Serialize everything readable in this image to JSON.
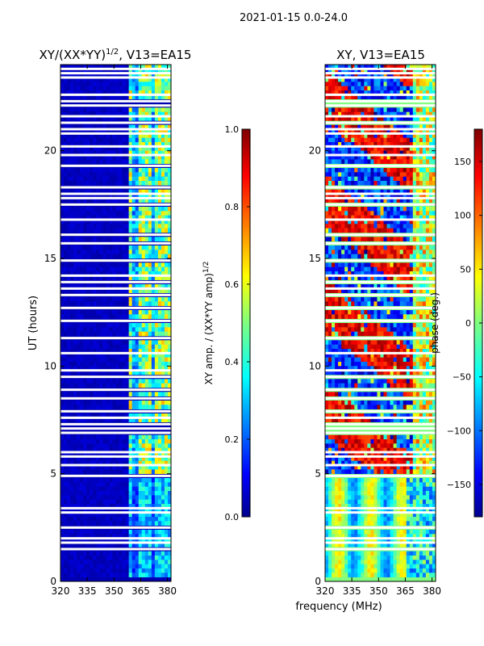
{
  "figure_title": "2021-01-15 0.0-24.0",
  "chart_data": [
    {
      "type": "heatmap",
      "title": "XY/(XX*YY)",
      "title_exp": "1/2",
      "title_suffix": ", V13=EA15",
      "xlabel": "",
      "ylabel": "UT (hours)",
      "xlim": [
        320,
        382
      ],
      "ylim": [
        0,
        24
      ],
      "xticks": [
        "320",
        "335",
        "350",
        "365",
        "380"
      ],
      "yticks": [
        "0",
        "5",
        "10",
        "15",
        "20"
      ],
      "colorbar": {
        "label": "XY amp. / (XX*YY amp)",
        "label_exp": "1/2",
        "range": [
          0.0,
          1.0
        ],
        "ticks": [
          "0.0",
          "0.2",
          "0.4",
          "0.6",
          "0.8",
          "1.0"
        ]
      }
    },
    {
      "type": "heatmap",
      "title": "XY, V13=EA15",
      "xlabel": "frequency (MHz)",
      "ylabel": "",
      "xlim": [
        320,
        382
      ],
      "ylim": [
        0,
        24
      ],
      "xticks": [
        "320",
        "335",
        "350",
        "365",
        "380"
      ],
      "yticks": [
        "0",
        "5",
        "10",
        "15",
        "20"
      ],
      "colorbar": {
        "label": "phase (deg.)",
        "range": [
          -180,
          180
        ],
        "ticks": [
          "−150",
          "−100",
          "−50",
          "0",
          "50",
          "100",
          "150"
        ]
      }
    }
  ],
  "gap_hours": [
    1.5,
    1.8,
    2.0,
    2.5,
    3.2,
    3.4,
    4.9,
    5.4,
    5.8,
    6.0,
    6.9,
    7.1,
    7.3,
    7.6,
    7.9,
    8.5,
    8.9,
    9.5,
    9.8,
    10.6,
    11.3,
    12.1,
    12.7,
    13.3,
    13.6,
    13.9,
    14.2,
    14.9,
    15.7,
    16.1,
    16.8,
    17.5,
    17.8,
    18.0,
    18.3,
    19.3,
    19.8,
    20.2,
    20.8,
    21.0,
    21.3,
    21.6,
    22.1,
    22.3,
    22.6,
    23.4,
    23.6,
    23.8
  ]
}
